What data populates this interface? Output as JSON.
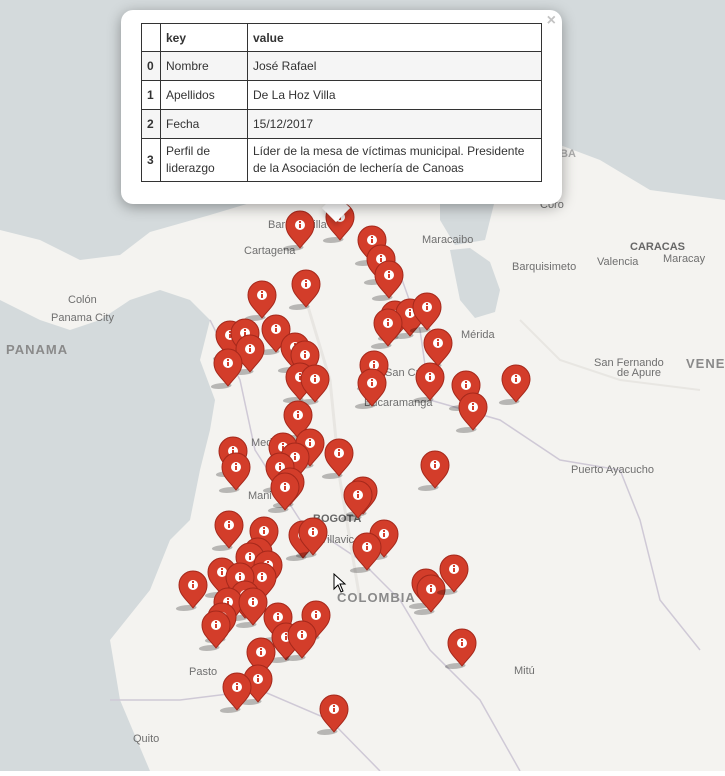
{
  "map": {
    "countries": [
      "PANAMA",
      "COLOMBIA",
      "VENE"
    ],
    "cities": {
      "barranquilla": "Barranquilla",
      "cartagena": "Cartagena",
      "maracaibo": "Maracaibo",
      "caracas": "CARACAS",
      "valencia": "Valencia",
      "maracay": "Maracay",
      "barquisimeto": "Barquisimeto",
      "colon": "Colón",
      "panama_city": "Panama City",
      "merida": "Mérida",
      "san_fernando_1": "San Fernando",
      "san_fernando_2": "de Apure",
      "san_cristobal": "San Cri",
      "bucaramanga": "Bucaramanga",
      "medellin": "Med",
      "manizales": "Mani",
      "bogota": "BOGOTÁ",
      "villavicencio": "Villavic",
      "puerto_ayacucho": "Puerto Ayacucho",
      "pasto": "Pasto",
      "mitu": "Mitú",
      "quito": "Quito",
      "coro": "Coro",
      "aruba": "BA"
    },
    "marker_icon": "info-sign-icon",
    "marker_color": "#d33d2a"
  },
  "popup": {
    "headers": [
      "",
      "key",
      "value"
    ],
    "rows": [
      {
        "idx": "0",
        "key": "Nombre",
        "value": "José Rafael"
      },
      {
        "idx": "1",
        "key": "Apellidos",
        "value": "De La Hoz Villa"
      },
      {
        "idx": "2",
        "key": "Fecha",
        "value": "15/12/2017"
      },
      {
        "idx": "3",
        "key": "Perfil de liderazgo",
        "value": "Líder de la mesa de víctimas municipal. Presidente de la Asociación de lechería de Canoas"
      }
    ],
    "close_label": "×"
  }
}
